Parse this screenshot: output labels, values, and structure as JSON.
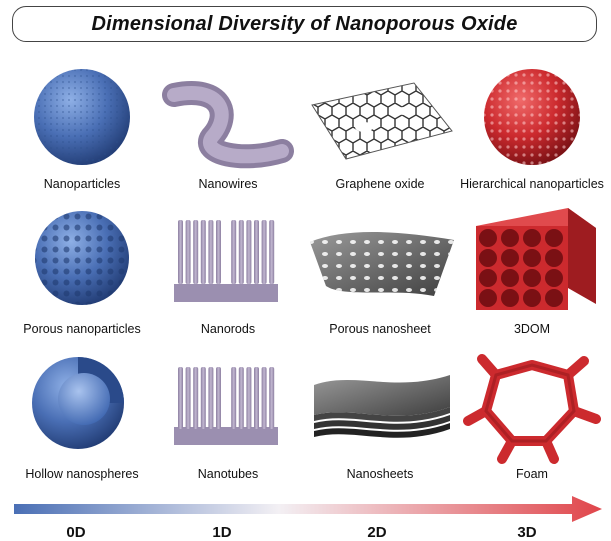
{
  "title": "Dimensional Diversity of Nanoporous Oxide",
  "grid": [
    [
      "Nanoparticles",
      "Nanowires",
      "Graphene oxide",
      "Hierarchical nanoparticles"
    ],
    [
      "Porous nanoparticles",
      "Nanorods",
      "Porous nanosheet",
      "3DOM"
    ],
    [
      "Hollow nanospheres",
      "Nanotubes",
      "Nanosheets",
      "Foam"
    ]
  ],
  "dimensions": [
    "0D",
    "1D",
    "2D",
    "3D"
  ],
  "colors": {
    "blue": "#4a6fb5",
    "lavender": "#a79ab8",
    "gray": "#6d6d6d",
    "red": "#cc2a2e"
  },
  "icons": [
    [
      "sphere-icon",
      "wire-icon",
      "graphene-sheet-icon",
      "hierarchical-sphere-icon"
    ],
    [
      "porous-sphere-icon",
      "nanorod-array-icon",
      "porous-sheet-icon",
      "3dom-cube-icon"
    ],
    [
      "hollow-sphere-icon",
      "nanotube-array-icon",
      "stacked-sheets-icon",
      "foam-icon"
    ]
  ]
}
